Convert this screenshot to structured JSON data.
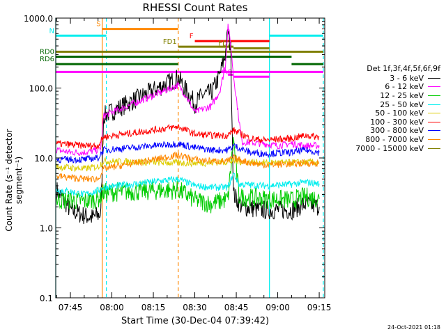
{
  "chart_data": {
    "type": "line",
    "title": "RHESSI Count Rates",
    "xlabel": "Start Time (30-Dec-04 07:39:42)",
    "ylabel": "Count Rate (s⁻¹ detector segment⁻¹)",
    "yscale": "log",
    "ylim": [
      0.1,
      1000
    ],
    "xlim": [
      "07:39:42",
      "09:17:00"
    ],
    "xticks": [
      "07:45",
      "08:00",
      "08:15",
      "08:30",
      "08:45",
      "09:00",
      "09:15"
    ],
    "yticks": [
      "0.1",
      "1.0",
      "10.0",
      "100.0",
      "1000.0"
    ],
    "legend_header": "Det 1f,3f,4f,5f,6f,9f",
    "series": [
      {
        "name": "3 - 6 keV",
        "color": "#000000",
        "points": [
          [
            "07:40",
            3.5
          ],
          [
            "07:45",
            1.8
          ],
          [
            "07:50",
            1.5
          ],
          [
            "07:53",
            1.4
          ],
          [
            "07:56",
            1.6
          ],
          [
            "07:57",
            40
          ],
          [
            "08:24",
            140
          ],
          [
            "08:27",
            90
          ],
          [
            "08:30",
            60
          ],
          [
            "08:33",
            80
          ],
          [
            "08:36",
            85
          ],
          [
            "08:39",
            150
          ],
          [
            "08:41",
            300
          ],
          [
            "08:42",
            650
          ],
          [
            "08:43",
            350
          ],
          [
            "08:44",
            3
          ],
          [
            "08:47",
            2.0
          ],
          [
            "08:55",
            1.8
          ],
          [
            "09:05",
            1.8
          ],
          [
            "09:10",
            2.2
          ],
          [
            "09:15",
            2.0
          ]
        ]
      },
      {
        "name": "6 - 12 keV",
        "color": "#ff00ff",
        "points": [
          [
            "07:40",
            13
          ],
          [
            "07:45",
            12
          ],
          [
            "07:50",
            12
          ],
          [
            "07:55",
            13
          ],
          [
            "07:56",
            14
          ],
          [
            "07:57",
            40
          ],
          [
            "08:24",
            110
          ],
          [
            "08:27",
            75
          ],
          [
            "08:30",
            45
          ],
          [
            "08:33",
            50
          ],
          [
            "08:36",
            55
          ],
          [
            "08:39",
            90
          ],
          [
            "08:41",
            200
          ],
          [
            "08:42",
            800
          ],
          [
            "08:43",
            400
          ],
          [
            "08:44",
            150
          ],
          [
            "08:47",
            17
          ],
          [
            "08:55",
            16
          ],
          [
            "09:00",
            15
          ],
          [
            "09:05",
            16
          ],
          [
            "09:10",
            15
          ],
          [
            "09:15",
            15
          ]
        ]
      },
      {
        "name": "12 - 25 keV",
        "color": "#00cc00",
        "points": [
          [
            "07:40",
            2.5
          ],
          [
            "07:45",
            2.5
          ],
          [
            "07:50",
            2.4
          ],
          [
            "07:55",
            2.6
          ],
          [
            "07:57",
            3.2
          ],
          [
            "08:24",
            3.5
          ],
          [
            "08:30",
            2.5
          ],
          [
            "08:36",
            2.2
          ],
          [
            "08:42",
            2.6
          ],
          [
            "08:44",
            18
          ],
          [
            "08:46",
            2.8
          ],
          [
            "08:55",
            2.6
          ],
          [
            "09:05",
            2.5
          ],
          [
            "09:10",
            2.8
          ],
          [
            "09:15",
            2.6
          ]
        ]
      },
      {
        "name": "25 - 50 keV",
        "color": "#00eeee",
        "points": [
          [
            "07:40",
            3.5
          ],
          [
            "07:45",
            3.3
          ],
          [
            "07:50",
            3.0
          ],
          [
            "07:55",
            3.4
          ],
          [
            "07:57",
            3.8
          ],
          [
            "08:24",
            5.0
          ],
          [
            "08:30",
            4.0
          ],
          [
            "08:36",
            3.8
          ],
          [
            "08:42",
            3.8
          ],
          [
            "08:44",
            6.0
          ],
          [
            "08:46",
            4.2
          ],
          [
            "08:55",
            4.0
          ],
          [
            "09:05",
            4.2
          ],
          [
            "09:10",
            4.5
          ],
          [
            "09:15",
            4.3
          ]
        ]
      },
      {
        "name": "50 - 100 keV",
        "color": "#ddcc00",
        "points": [
          [
            "07:40",
            7.5
          ],
          [
            "07:50",
            7.0
          ],
          [
            "07:55",
            7.5
          ],
          [
            "07:57",
            9
          ],
          [
            "08:24",
            8.5
          ],
          [
            "08:35",
            8.5
          ],
          [
            "08:44",
            9
          ],
          [
            "08:55",
            8.5
          ],
          [
            "09:05",
            8.6
          ],
          [
            "09:15",
            8.7
          ]
        ]
      },
      {
        "name": "100 - 300 keV",
        "color": "#ff0000",
        "points": [
          [
            "07:40",
            16
          ],
          [
            "07:50",
            15
          ],
          [
            "07:55",
            15
          ],
          [
            "07:57",
            20
          ],
          [
            "08:24",
            28
          ],
          [
            "08:30",
            22
          ],
          [
            "08:36",
            21
          ],
          [
            "08:42",
            21
          ],
          [
            "08:44",
            25
          ],
          [
            "08:50",
            19
          ],
          [
            "08:55",
            18
          ],
          [
            "09:05",
            19
          ],
          [
            "09:10",
            21
          ],
          [
            "09:15",
            20
          ]
        ]
      },
      {
        "name": "300 - 800 keV",
        "color": "#0000ff",
        "points": [
          [
            "07:40",
            9.5
          ],
          [
            "07:50",
            9.5
          ],
          [
            "07:55",
            10
          ],
          [
            "07:57",
            13
          ],
          [
            "08:24",
            16
          ],
          [
            "08:30",
            14
          ],
          [
            "08:36",
            13
          ],
          [
            "08:42",
            13
          ],
          [
            "08:44",
            15
          ],
          [
            "08:50",
            12
          ],
          [
            "08:55",
            11.5
          ],
          [
            "09:05",
            12
          ],
          [
            "09:10",
            13
          ],
          [
            "09:15",
            12
          ]
        ]
      },
      {
        "name": "800 - 7000 keV",
        "color": "#ff8800",
        "points": [
          [
            "07:40",
            5.5
          ],
          [
            "07:50",
            5.0
          ],
          [
            "07:55",
            5.0
          ],
          [
            "07:57",
            7
          ],
          [
            "08:24",
            11
          ],
          [
            "08:30",
            9.5
          ],
          [
            "08:36",
            9
          ],
          [
            "08:42",
            9
          ],
          [
            "08:44",
            10
          ],
          [
            "08:50",
            8.5
          ],
          [
            "08:55",
            8.0
          ],
          [
            "09:05",
            8.2
          ],
          [
            "09:10",
            8.5
          ],
          [
            "09:15",
            8.3
          ]
        ]
      },
      {
        "name": "7000 - 15000 keV",
        "color": "#808000",
        "points": []
      }
    ],
    "flag_bars": [
      {
        "label": "S",
        "color": "#ff8800",
        "start": "07:56:30",
        "end": "08:24:00",
        "level": 700
      },
      {
        "label": "N",
        "color": "#00eeee",
        "start": "07:39:42",
        "end": "07:58:00",
        "level": 560
      },
      {
        "label": "N",
        "color": "#00eeee",
        "start": "08:57:00",
        "end": "09:16:30",
        "level": 560,
        "hidden_label": true
      },
      {
        "label": "F",
        "color": "#ff0000",
        "start": "08:30:00",
        "end": "08:57:00",
        "level": 470
      },
      {
        "label": "FD1",
        "color": "#808000",
        "start": "08:24:00",
        "end": "08:44:00",
        "level": 390
      },
      {
        "label": "FD2",
        "color": "#808000",
        "start": "08:44:00",
        "end": "08:57:00",
        "level": 370
      },
      {
        "label": "",
        "color": "#808000",
        "start": "07:39:42",
        "end": "09:16:30",
        "level": 330
      },
      {
        "label": "RD0",
        "color": "#006600",
        "start": "07:39:42",
        "end": "08:24:00",
        "level": 280
      },
      {
        "label": "",
        "color": "#006600",
        "start": "08:24:00",
        "end": "09:05:00",
        "level": 280
      },
      {
        "label": "RD6",
        "color": "#006600",
        "start": "07:39:42",
        "end": "08:24:00",
        "level": 220
      },
      {
        "label": "",
        "color": "#006600",
        "start": "09:05:00",
        "end": "09:16:30",
        "level": 220
      },
      {
        "label": "",
        "color": "#ff00ff",
        "start": "07:39:42",
        "end": "09:16:30",
        "level": 170
      },
      {
        "label": "A",
        "color": "#ff00ff",
        "start": "08:42:00",
        "end": "08:44:00",
        "level": 155
      },
      {
        "label": "A0",
        "color": "#ff00ff",
        "start": "08:44:00",
        "end": "08:57:00",
        "level": 145
      }
    ],
    "vertical_markers": [
      {
        "time": "07:56:30",
        "color": "#ff8800",
        "style": "solid"
      },
      {
        "time": "07:58:00",
        "color": "#00eeee",
        "style": "dashed"
      },
      {
        "time": "08:24:00",
        "color": "#ff8800",
        "style": "dashed"
      },
      {
        "time": "08:57:00",
        "color": "#00eeee",
        "style": "solid"
      },
      {
        "time": "09:16:30",
        "color": "#00eeee",
        "style": "dashed"
      },
      {
        "time": "07:39:42",
        "color": "#00eeee",
        "style": "solid"
      }
    ],
    "grid": false,
    "legend_position": "right"
  },
  "footer": {
    "date_stamp": "24-Oct-2021 01:18"
  }
}
